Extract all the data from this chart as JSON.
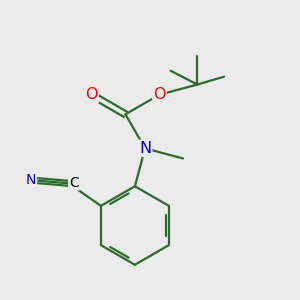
{
  "background_color": "#ebebeb",
  "bond_color": "#2d6b2d",
  "atom_colors": {
    "O": "#ff0000",
    "N": "#0000cc",
    "C_black": "#000000"
  },
  "figsize": [
    3.0,
    3.0
  ],
  "dpi": 100,
  "bond_lw": 1.6,
  "font_size": 10.5
}
